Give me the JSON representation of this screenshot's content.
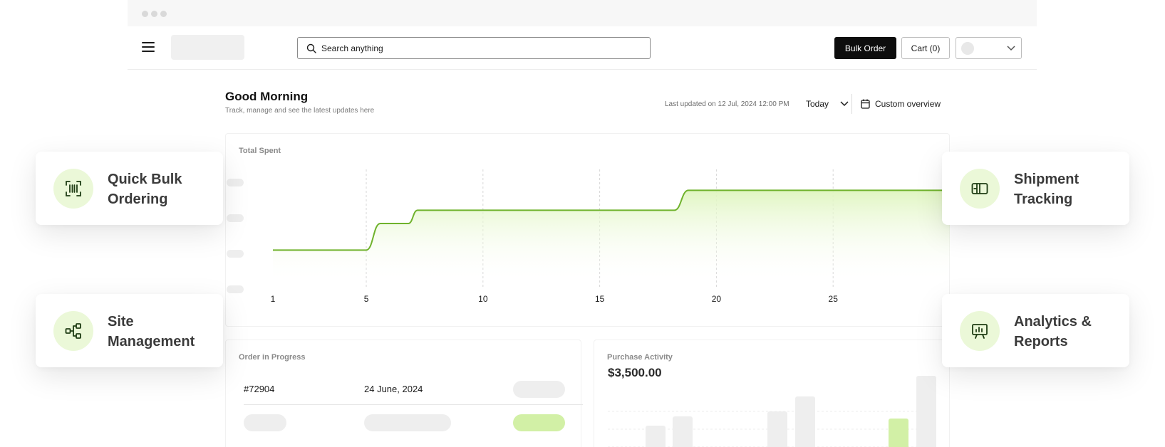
{
  "search": {
    "placeholder": "Search anything"
  },
  "header": {
    "bulk_order_label": "Bulk Order",
    "cart_label": "Cart (0)"
  },
  "dashboard": {
    "greeting": "Good Morning",
    "subtitle": "Track, manage and see the latest updates here",
    "last_updated": "Last updated on 12 Jul, 2024 12:00 PM",
    "period": "Today",
    "custom_overview": "Custom overview"
  },
  "total_spent": {
    "title": "Total Spent"
  },
  "chart_data": {
    "type": "area",
    "title": "Total Spent",
    "x_ticks": [
      "1",
      "5",
      "10",
      "15",
      "20",
      "25"
    ],
    "x": [
      1,
      5,
      5.6,
      6.8,
      7.2,
      18.2,
      18.8,
      30
    ],
    "y": [
      1,
      1,
      1.8,
      1.8,
      2.2,
      2.2,
      2.8,
      2.8
    ],
    "xlim": [
      1,
      30
    ],
    "ylim": [
      0,
      3
    ],
    "grid": "vertical-dashed",
    "color": "#6fb22c"
  },
  "orders": {
    "title": "Order in Progress",
    "rows": [
      {
        "id": "#72904",
        "date": "24 June, 2024"
      }
    ]
  },
  "purchase": {
    "title": "Purchase Activity",
    "amount": "$3,500.00"
  },
  "features": [
    {
      "label": "Quick Bulk Ordering",
      "icon": "barcode-scan-icon"
    },
    {
      "label": "Site Management",
      "icon": "hierarchy-icon"
    },
    {
      "label": "Shipment Tracking",
      "icon": "shipment-box-icon"
    },
    {
      "label": "Analytics & Reports",
      "icon": "analytics-board-icon"
    }
  ],
  "colors": {
    "accent": "#6fb22c",
    "accent_soft": "#ebf8d8",
    "pill_green": "#d2f0a6"
  }
}
